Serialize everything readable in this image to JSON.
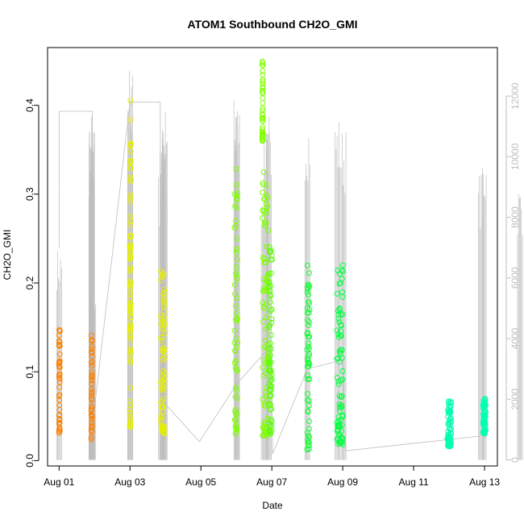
{
  "chart_data": {
    "type": "scatter",
    "title": "ATOM1 Southbound CH2O_GMI",
    "xlabel": "Date",
    "ylabel": "CH2O_GMI",
    "xlim": [
      "2016-07-31T16:12",
      "2016-08-13T08:42"
    ],
    "ylim": [
      -0.006,
      0.465
    ],
    "x_ticks": [
      "Aug 01",
      "Aug 03",
      "Aug 05",
      "Aug 07",
      "Aug 09",
      "Aug 11",
      "Aug 13"
    ],
    "y_ticks": [
      "0.0",
      "0.1",
      "0.2",
      "0.3",
      "0.4"
    ],
    "y_tick_values": [
      0.0,
      0.1,
      0.2,
      0.3,
      0.4
    ],
    "secondary_axis": {
      "color": "#bebebe",
      "ylim": [
        -200,
        13600
      ],
      "ticks": [
        "0",
        "2000",
        "4000",
        "6000",
        "8000",
        "10000",
        "12000"
      ],
      "tick_values": [
        0,
        2000,
        4000,
        6000,
        8000,
        10000,
        12000
      ]
    },
    "grid": false,
    "marker": "open circle",
    "flights": [
      {
        "start": "2016-08-01T00:00",
        "end": "2016-08-01T00:05",
        "ymin": 0.03,
        "ymax": 0.148,
        "color": "#FF8000"
      },
      {
        "start": "2016-08-01T21:50",
        "end": "2016-08-01T22:20",
        "ymin": 0.024,
        "ymax": 0.142,
        "color": "#FF8000"
      },
      {
        "start": "2016-08-02T23:50",
        "end": "2016-08-03T00:10",
        "ymin": 0.035,
        "ymax": 0.255,
        "color": "#E6F000"
      },
      {
        "start": "2016-08-03T00:10",
        "end": "2016-08-03T00:20",
        "ymin": 0.12,
        "ymax": 0.408,
        "color": "#E6F000"
      },
      {
        "start": "2016-08-03T20:50",
        "end": "2016-08-03T23:50",
        "ymin": 0.03,
        "ymax": 0.215,
        "color": "#E6F000"
      },
      {
        "start": "2016-08-05T22:50",
        "end": "2016-08-06T00:50",
        "ymin": 0.03,
        "ymax": 0.33,
        "color": "#80FF00"
      },
      {
        "start": "2016-08-06T17:30",
        "end": "2016-08-06T17:45",
        "ymin": 0.36,
        "ymax": 0.453,
        "color": "#80FF00"
      },
      {
        "start": "2016-08-06T17:40",
        "end": "2016-08-06T21:50",
        "ymin": 0.028,
        "ymax": 0.333,
        "color": "#80FF00"
      },
      {
        "start": "2016-08-06T21:50",
        "end": "2016-08-07T00:10",
        "ymin": 0.03,
        "ymax": 0.243,
        "color": "#5AFF00"
      },
      {
        "start": "2016-08-07T23:50",
        "end": "2016-08-08T01:30",
        "ymin": 0.012,
        "ymax": 0.225,
        "color": "#10FF30"
      },
      {
        "start": "2016-08-08T20:10",
        "end": "2016-08-09T00:10",
        "ymin": 0.018,
        "ymax": 0.22,
        "color": "#00FF40"
      },
      {
        "start": "2016-08-11T22:50",
        "end": "2016-08-12T01:30",
        "ymin": 0.016,
        "ymax": 0.068,
        "color": "#00FFB0"
      },
      {
        "start": "2016-08-12T22:50",
        "end": "2016-08-13T00:50",
        "ymin": 0.03,
        "ymax": 0.07,
        "color": "#00FFB0"
      }
    ],
    "altitude_series": {
      "name": "",
      "color": "#bebebe",
      "points": [
        [
          "2016-08-01T00:00",
          7000
        ],
        [
          "2016-08-01T00:05",
          11500
        ],
        [
          "2016-08-01T22:30",
          11500
        ],
        [
          "2016-08-01T22:45",
          1200
        ],
        [
          "2016-08-03T00:00",
          11800
        ],
        [
          "2016-08-03T20:30",
          11800
        ],
        [
          "2016-08-03T21:00",
          2000
        ],
        [
          "2016-08-04T23:00",
          600
        ],
        [
          "2016-08-06T00:10",
          2500
        ],
        [
          "2016-08-07T00:00",
          3800
        ],
        [
          "2016-08-07T00:30",
          200
        ],
        [
          "2016-08-08T00:00",
          3000
        ],
        [
          "2016-08-09T00:00",
          3300
        ],
        [
          "2016-08-09T02:00",
          300
        ],
        [
          "2016-08-13T00:00",
          800
        ],
        [
          "2016-08-13T00:30",
          700
        ]
      ],
      "spikes": [
        [
          "2016-08-01T00:00",
          7000
        ],
        [
          "2016-08-01T21:50",
          10000
        ],
        [
          "2016-08-01T22:00",
          10800
        ],
        [
          "2016-08-01T22:10",
          11500
        ],
        [
          "2016-08-01T22:20",
          11000
        ],
        [
          "2016-08-01T23:10",
          6000
        ],
        [
          "2016-08-03T00:00",
          13000
        ],
        [
          "2016-08-03T00:10",
          12200
        ],
        [
          "2016-08-03T21:00",
          9500
        ],
        [
          "2016-08-03T22:00",
          11300
        ],
        [
          "2016-08-03T23:00",
          11700
        ],
        [
          "2016-08-03T23:30",
          11200
        ],
        [
          "2016-08-06T00:00",
          12000
        ],
        [
          "2016-08-06T00:30",
          11800
        ],
        [
          "2016-08-06T18:30",
          9500
        ],
        [
          "2016-08-06T20:30",
          11500
        ],
        [
          "2016-08-06T22:00",
          11000
        ],
        [
          "2016-08-08T00:00",
          11500
        ],
        [
          "2016-08-08T20:30",
          11400
        ],
        [
          "2016-08-09T00:30",
          11000
        ],
        [
          "2016-08-12T21:30",
          9500
        ],
        [
          "2016-08-12T23:30",
          10300
        ],
        [
          "2016-08-13T23:59",
          9200
        ]
      ]
    },
    "colors": {
      "orange": "#FF8000",
      "yellow": "#E6F000",
      "yellow_green": "#80FF00",
      "green": "#00FF40",
      "teal": "#00FFB0",
      "altitude": "#bebebe"
    }
  }
}
